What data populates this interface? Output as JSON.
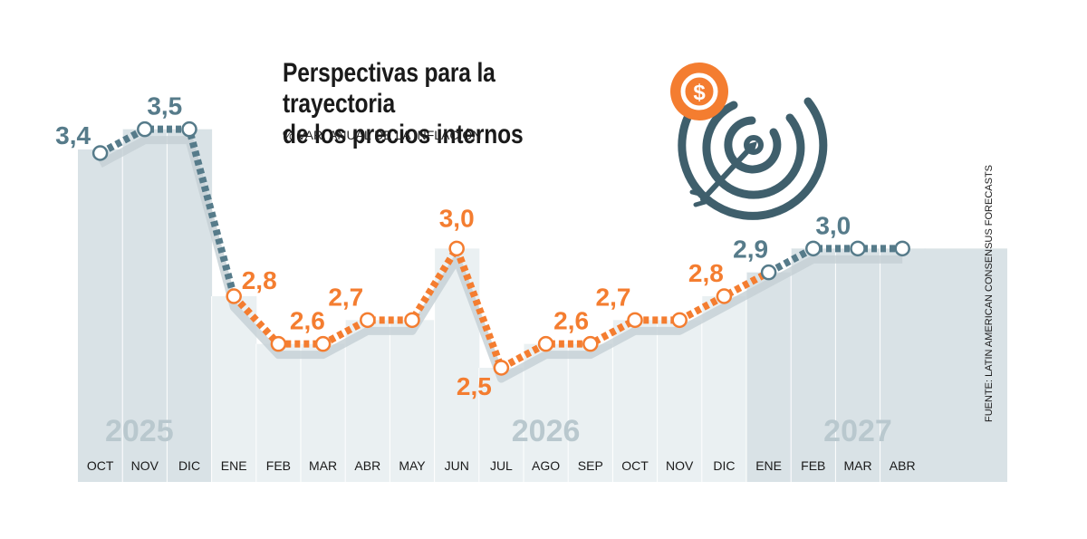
{
  "header": {
    "title_line1": "Perspectivas para la trayectoria",
    "title_line2": "de los precios internos",
    "subtitle": "% VAR. ANUAL DE LA INFLACIÓN"
  },
  "source": "FUENTE: LATIN AMERICAN CONSENSUS FORECASTS",
  "colors": {
    "actual": "#567b8a",
    "forecast": "#f47d30",
    "band_dark": "#d9e2e6",
    "band_light": "#eaf0f2",
    "icon": "#3f5f6c"
  },
  "icons": [
    "target-icon",
    "dollar-coin-icon",
    "arrow-icon"
  ],
  "chart_data": {
    "type": "line",
    "title": "Perspectivas para la trayectoria de los precios internos",
    "subtitle": "% VAR. ANUAL DE LA INFLACIÓN",
    "categories": [
      "OCT",
      "NOV",
      "DIC",
      "ENE",
      "FEB",
      "MAR",
      "ABR",
      "MAY",
      "JUN",
      "JUL",
      "AGO",
      "SEP",
      "OCT",
      "NOV",
      "DIC",
      "ENE",
      "FEB",
      "MAR",
      "ABR"
    ],
    "values": [
      3.4,
      3.5,
      3.5,
      2.8,
      2.6,
      2.6,
      2.7,
      2.7,
      3.0,
      2.5,
      2.6,
      2.6,
      2.7,
      2.7,
      2.8,
      2.9,
      3.0,
      3.0,
      3.0
    ],
    "segments": [
      {
        "from": 0,
        "to": 3,
        "color": "#567b8a"
      },
      {
        "from": 3,
        "to": 15,
        "color": "#f47d30"
      },
      {
        "from": 15,
        "to": 18,
        "color": "#567b8a"
      }
    ],
    "data_labels": [
      {
        "index": 0,
        "text": "3,4",
        "color": "#567b8a"
      },
      {
        "index": 1,
        "text": "3,5",
        "color": "#567b8a"
      },
      {
        "index": 3,
        "text": "2,8",
        "color": "#f47d30"
      },
      {
        "index": 4,
        "text": "2,6",
        "color": "#f47d30"
      },
      {
        "index": 6,
        "text": "2,7",
        "color": "#f47d30"
      },
      {
        "index": 8,
        "text": "3,0",
        "color": "#f47d30"
      },
      {
        "index": 9,
        "text": "2,5",
        "color": "#f47d30"
      },
      {
        "index": 10,
        "text": "2,6",
        "color": "#f47d30"
      },
      {
        "index": 12,
        "text": "2,7",
        "color": "#f47d30"
      },
      {
        "index": 14,
        "text": "2,8",
        "color": "#f47d30"
      },
      {
        "index": 15,
        "text": "2,9",
        "color": "#567b8a"
      },
      {
        "index": 16,
        "text": "3,0",
        "color": "#567b8a"
      }
    ],
    "years": [
      {
        "label": "2025",
        "center_index": 1
      },
      {
        "label": "2026",
        "center_index": 10
      },
      {
        "label": "2027",
        "center_index": 17
      }
    ],
    "ylim": [
      2.2,
      3.7
    ],
    "xlabel": "",
    "ylabel": "",
    "grid": false,
    "legend": "none"
  }
}
